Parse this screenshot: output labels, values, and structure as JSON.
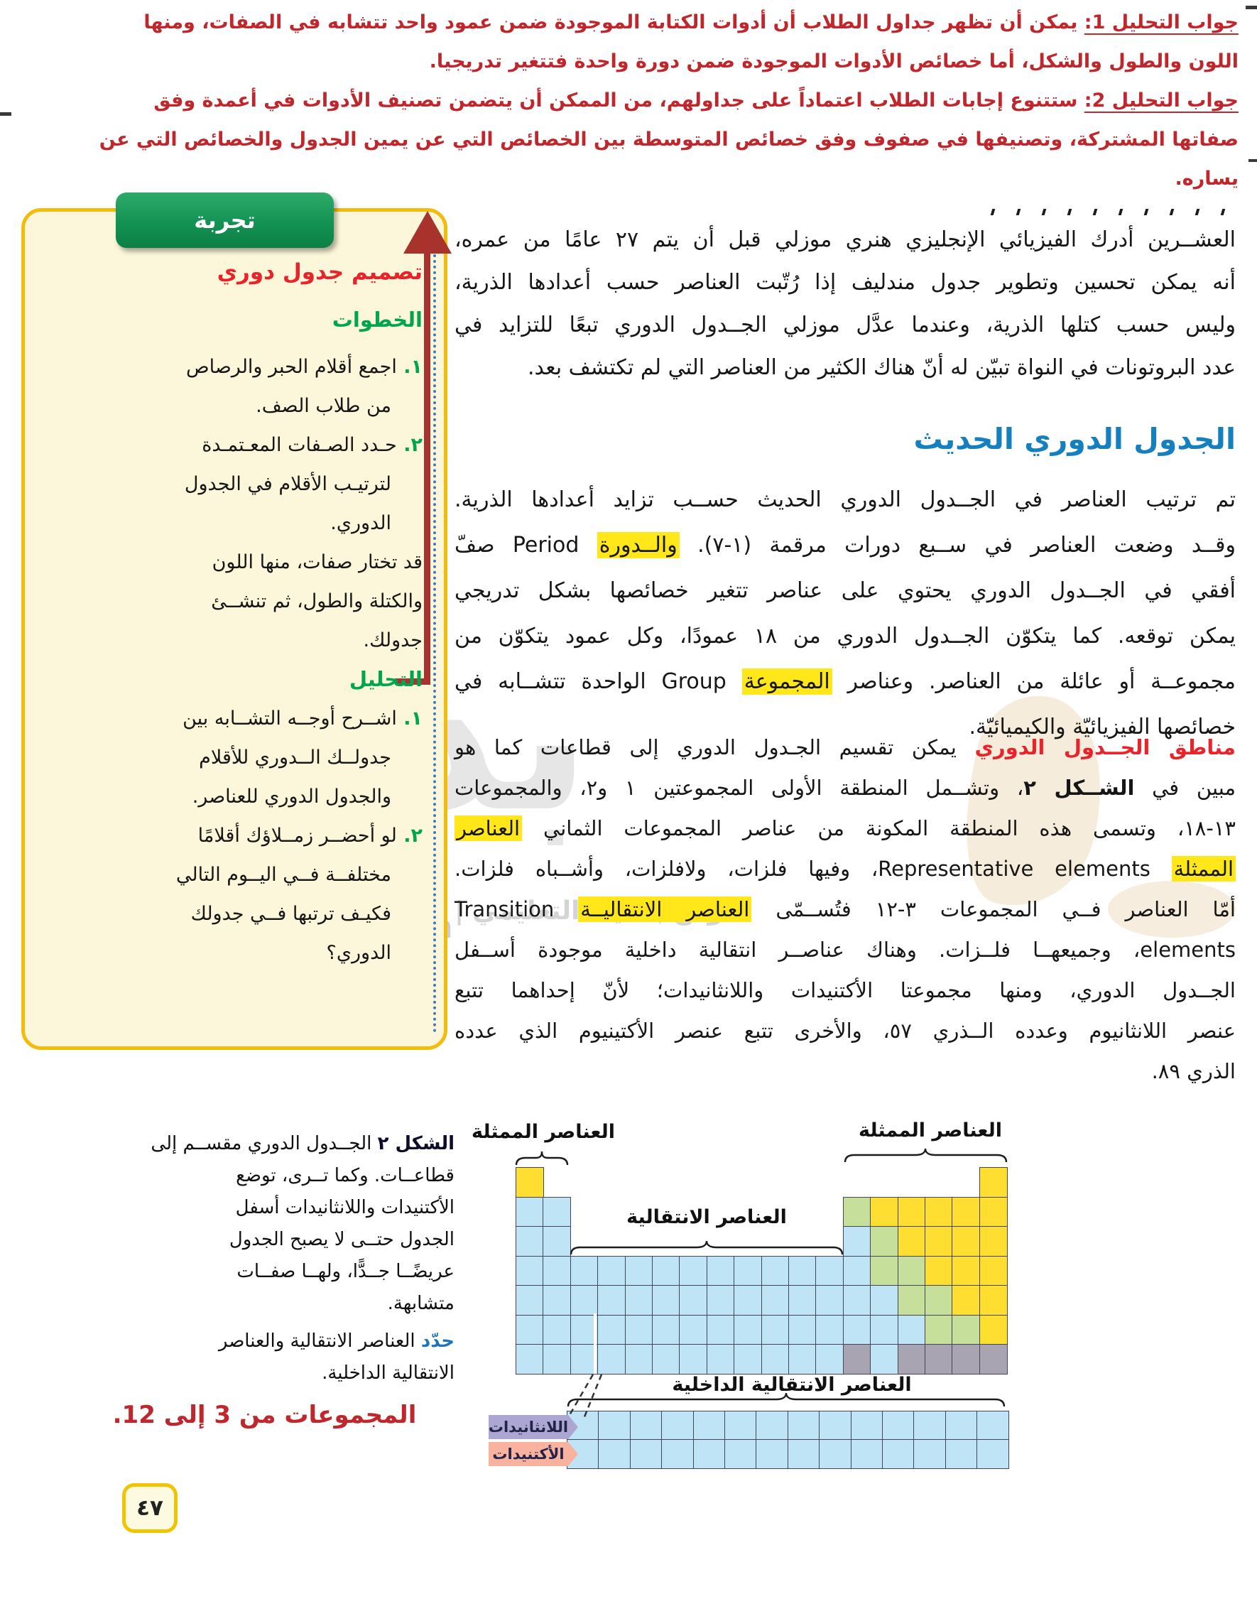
{
  "answers": {
    "a1_label": "جواب التحليل 1:",
    "a1_text": " يمكن أن تظهر جداول الطلاب أن أدوات الكتابة الموجودة ضمن عمود واحد تتشابه في الصفات، ومنها",
    "a1_line2": "اللون والطول والشكل، أما خصائص الأدوات الموجودة ضمن دورة واحدة فتتغير تدريجيا.",
    "a2_label": "جواب التحليل 2:",
    "a2_text": " ستتنوع إجابات الطلاب اعتماداً على جداولهم، من الممكن أن يتضمن تصنيف الأدوات في أعمدة وفق",
    "a2_line2": "صفاتها المشتركة، وتصنيفها في صفوف وفق خصائص المتوسطة بين الخصائص التي عن يمين الجدول والخصائص التي عن",
    "a2_line3": "يساره."
  },
  "experiment": {
    "tab": "تجربة",
    "title": "تصميم جدول دوري",
    "steps_heading": "الخطوات",
    "steps": [
      {
        "num": "١.",
        "lines": [
          "اجمع أقلام الحبر والرصاص",
          "من طلاب الصف."
        ]
      },
      {
        "num": "٢.",
        "lines": [
          "حـدد الصـفات المعـتمـدة",
          "لترتيـب الأقلام في الجدول",
          "الدوري."
        ]
      }
    ],
    "note_lines": [
      "قد تختار صفات، منها اللون",
      "والكتلة والطول، ثم تنشــئ",
      "جدولك."
    ],
    "analysis_heading": "التحليل",
    "analysis": [
      {
        "num": "١.",
        "lines": [
          "اشــرح أوجــه التشــابه بين",
          "جدولــك الــدوري للأقلام",
          "والجدول الدوري للعناصر."
        ]
      },
      {
        "num": "٢.",
        "lines": [
          "لو أحضــر زمــلاؤك أقلامًا",
          "مختلفــة فــي اليــوم التالي",
          "فكيـف ترتبها فــي جدولك",
          "الدوري؟"
        ]
      }
    ]
  },
  "intro": {
    "lines": [
      {
        "seg": [
          {
            "t": "العشــرين أدرك الفيزيائي الإنجليزي هنري موزلي قبل أن يتم ٢٧ عامًا من عمره،",
            "s": "n"
          }
        ]
      },
      {
        "seg": [
          {
            "t": "أنه يمكن تحسين وتطوير جدول مندليف إذا رُتّبت العناصر حسب أعدادها الذرية،",
            "s": "n"
          }
        ]
      },
      {
        "seg": [
          {
            "t": "وليس حسب كتلها الذرية، وعندما عدَّل موزلي الجــدول الدوري تبعًا للتزايد في",
            "s": "n"
          }
        ]
      },
      {
        "seg": [
          {
            "t": "عدد البروتونات في النواة تبيّن له أنّ هناك الكثير من العناصر التي لم تكتشف بعد.",
            "s": "n"
          }
        ],
        "end": true
      }
    ]
  },
  "modern": {
    "heading": "الجدول الدوري الحديث",
    "lines": [
      {
        "seg": [
          {
            "t": "تم ترتيب العناصر في الجــدول الدوري الحديث حســب تزايد أعدادها الذرية.",
            "s": "n"
          }
        ]
      },
      {
        "seg": [
          {
            "t": "وقــد وضعت العناصر في ســبع دورات مرقمة (١-٧). ",
            "s": "n"
          },
          {
            "t": "والــدورة",
            "s": "h"
          },
          {
            "t": " Period صفّ",
            "s": "n"
          }
        ]
      },
      {
        "seg": [
          {
            "t": "أفقي في الجــدول الدوري يحتوي على عناصر تتغير خصائصها بشكل تدريجي",
            "s": "n"
          }
        ]
      },
      {
        "seg": [
          {
            "t": "يمكن توقعه. كما يتكوّن الجــدول الدوري من ١٨ عمودًا، وكل عمود يتكوّن من",
            "s": "n"
          }
        ]
      },
      {
        "seg": [
          {
            "t": "مجموعــة أو عائلة من العناصر. وعناصر ",
            "s": "n"
          },
          {
            "t": "المجموعة",
            "s": "h"
          },
          {
            "t": " Group الواحدة تتشــابه في",
            "s": "n"
          }
        ]
      },
      {
        "seg": [
          {
            "t": "خصائصها الفيزيائيّة والكيميائيّة.",
            "s": "n"
          }
        ],
        "end": true
      }
    ]
  },
  "regions": {
    "lines": [
      {
        "seg": [
          {
            "t": "مناطق الجــدول الدوري",
            "s": "r"
          },
          {
            "t": "  يمكن تقسيم الجـدول الدوري إلى قطاعات كما هو",
            "s": "n"
          }
        ]
      },
      {
        "seg": [
          {
            "t": "مبين في ",
            "s": "n"
          },
          {
            "t": "الشــكل ٢",
            "s": "b"
          },
          {
            "t": "، وتشــمل المنطقة الأولى المجموعتين ١ و٢، والمجموعات",
            "s": "n"
          }
        ]
      },
      {
        "seg": [
          {
            "t": "١٣-١٨، وتسمى هذه المنطقة المكونة من عناصر المجموعات الثماني ",
            "s": "n"
          },
          {
            "t": "العناصر",
            "s": "h"
          }
        ]
      },
      {
        "seg": [
          {
            "t": "الممثلة",
            "s": "h"
          },
          {
            "t": " Representative elements، وفيها فلزات، ولافلزات، وأشــباه فلزات.",
            "s": "n"
          }
        ]
      },
      {
        "seg": [
          {
            "t": "أمّا العناصر فــي المجموعات ٣-١٢ فتُســمّى ",
            "s": "n"
          },
          {
            "t": "العناصر الانتقاليــة",
            "s": "h"
          },
          {
            "t": " Transition",
            "s": "n"
          }
        ]
      },
      {
        "seg": [
          {
            "t": "elements، وجميعهــا فلــزات. وهناك عناصــر انتقالية داخلية موجودة أســفل",
            "s": "n"
          }
        ]
      },
      {
        "seg": [
          {
            "t": "الجــدول الدوري، ومنها مجموعتا الأكتنيدات واللانثانيدات؛ لأنّ إحداهما تتبع",
            "s": "n"
          }
        ]
      },
      {
        "seg": [
          {
            "t": "عنصر اللانثانيوم وعدده الــذري ٥٧، والأخرى تتبع عنصر الأكتينيوم الذي عدده",
            "s": "n"
          }
        ]
      },
      {
        "seg": [
          {
            "t": "الذري ٨٩.",
            "s": "n"
          }
        ],
        "end": true
      }
    ]
  },
  "figure": {
    "label_representative_left": "العناصر الممثلة",
    "label_representative_right": "العناصر الممثلة",
    "label_transition": "العناصر الانتقالية",
    "label_inner_transition": "العناصر الانتقالية الداخلية",
    "ribbon_lanthanides": "اللانثانيدات",
    "ribbon_actinides": "الأكتنيدات",
    "colors": {
      "Y": "#ffde32",
      "B": "#bfe4f6",
      "G": "#c6e09c",
      "X": "#a9a4b2"
    },
    "grid": [
      "Y................Y",
      "BB..........GYYYYY",
      "BB..........BGYYYY",
      "BBBBBBBBBBBBBGGYYY",
      "BBBBBBBBBBBBBBGGYY",
      "BBBBBBBBBBBBBBBGGY",
      "BBBBBBBBBBBBXBXXXX"
    ],
    "inner_grid": [
      "BBBBBBBBBBBBBB",
      "BBBBBBBBBBBBBB"
    ]
  },
  "caption": {
    "figure_label": "الشكل ٢",
    "lead": " الجــدول الدوري مقســم إلى",
    "lines": [
      "قطاعــات. وكما تــرى، توضع",
      "الأكتنيدات واللانثانيدات أسفل",
      "الجدول حتــى لا يصبح الجدول",
      "عريضًــا جــدًّا، ولهــا صفــات",
      "متشابهة."
    ],
    "verb": "حدّد",
    "task": " العناصر الانتقالية والعناصر",
    "task_line2": "الانتقالية الداخلية.",
    "answer": "المجموعات من 3 إلى 12."
  },
  "watermark": {
    "big": "بداية",
    "url": "beadaya.com",
    "site": "موقع بـدايـة التعليمي |"
  },
  "page_number": "٤٧"
}
